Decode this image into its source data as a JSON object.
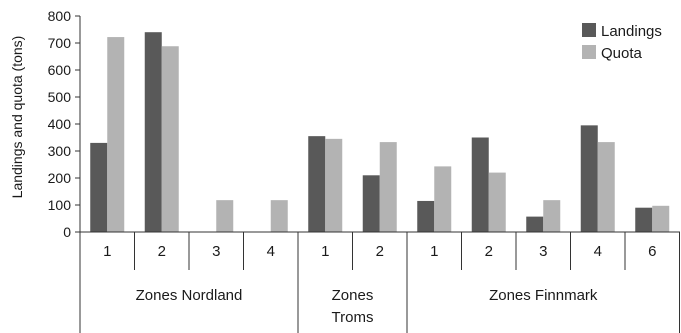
{
  "chart_data": {
    "type": "bar",
    "title": "",
    "xlabel": "",
    "ylabel": "Landings and quota (tons)",
    "ylim": [
      0,
      800
    ],
    "yticks": [
      0,
      100,
      200,
      300,
      400,
      500,
      600,
      700,
      800
    ],
    "grid": false,
    "legend_position": "top-right",
    "groups": [
      {
        "label": "Zones Nordland",
        "label_lines": [
          "Zones Nordland"
        ],
        "categories": [
          "1",
          "2",
          "3",
          "4"
        ]
      },
      {
        "label": "Zones Troms",
        "label_lines": [
          "Zones",
          "Troms"
        ],
        "categories": [
          "1",
          "2"
        ]
      },
      {
        "label": "Zones Finnmark",
        "label_lines": [
          "Zones Finnmark"
        ],
        "categories": [
          "1",
          "2",
          "3",
          "4",
          "6"
        ]
      }
    ],
    "categories": [
      "1",
      "2",
      "3",
      "4",
      "1",
      "2",
      "1",
      "2",
      "3",
      "4",
      "6"
    ],
    "series": [
      {
        "name": "Landings",
        "color": "#595959",
        "values": [
          330,
          740,
          0,
          0,
          355,
          210,
          115,
          350,
          57,
          395,
          90
        ]
      },
      {
        "name": "Quota",
        "color": "#b3b3b3",
        "values": [
          722,
          688,
          118,
          118,
          345,
          333,
          243,
          220,
          118,
          333,
          97
        ]
      }
    ]
  }
}
